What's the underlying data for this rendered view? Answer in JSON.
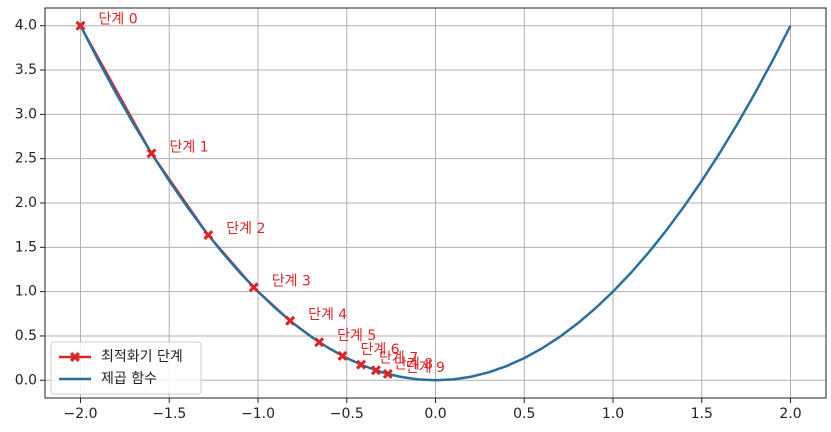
{
  "chart_data": {
    "type": "line",
    "xlim": [
      -2.2,
      2.2
    ],
    "ylim": [
      -0.2,
      4.2
    ],
    "xticks": [
      {
        "value": -2.0,
        "label": "−2.0"
      },
      {
        "value": -1.5,
        "label": "−1.5"
      },
      {
        "value": -1.0,
        "label": "−1.0"
      },
      {
        "value": -0.5,
        "label": "−0.5"
      },
      {
        "value": 0,
        "label": "0.0"
      },
      0.5,
      {
        "value": 1,
        "label": "1.0"
      },
      1.5,
      {
        "value": 2,
        "label": "2.0"
      }
    ],
    "yticks": [
      {
        "value": 0,
        "label": "0.0"
      },
      0.5,
      {
        "value": 1,
        "label": "1.0"
      },
      1.5,
      {
        "value": 2,
        "label": "2.0"
      },
      2.5,
      {
        "value": 3,
        "label": "3.0"
      },
      3.5,
      {
        "value": 4,
        "label": "4.0"
      }
    ],
    "grid": true,
    "legend": "lower left",
    "series": [
      {
        "name": "최적화기 단계",
        "color": "#d62728",
        "marker": "X",
        "x": [
          -2,
          -1.6,
          -1.28,
          -1.024,
          -0.8192,
          -0.65536,
          -0.524288,
          -0.4194304,
          -0.33554432,
          -0.268435456
        ],
        "values": [
          4,
          2.56,
          1.6384,
          1.048576,
          0.67108864,
          0.4294967296,
          0.274877906944,
          0.17592186044416,
          0.1125899906842624,
          0.07205759403792794
        ],
        "annotations": [
          "단계 0",
          "단계 1",
          "단계 2",
          "단계 3",
          "단계 4",
          "단계 5",
          "단계 6",
          "단계 7",
          "단계 8",
          "단계 9"
        ]
      },
      {
        "name": "제곱 함수",
        "color": "#2a6f9b",
        "x": [
          -2,
          -1.9,
          -1.8,
          -1.7,
          -1.6,
          -1.5,
          -1.4,
          -1.3,
          -1.2,
          -1.1,
          -1,
          -0.9,
          -0.8,
          -0.7,
          -0.6,
          -0.5,
          -0.4,
          -0.3,
          -0.2,
          -0.1,
          0,
          0.1,
          0.2,
          0.3,
          0.4,
          0.5,
          0.6,
          0.7,
          0.8,
          0.9,
          1,
          1.1,
          1.2,
          1.3,
          1.4,
          1.5,
          1.6,
          1.7,
          1.8,
          1.9,
          2
        ],
        "values": [
          4,
          3.61,
          3.24,
          2.89,
          2.56,
          2.25,
          1.96,
          1.69,
          1.44,
          1.21,
          1,
          0.81,
          0.64,
          0.49,
          0.36,
          0.25,
          0.16,
          0.09,
          0.04,
          0.01,
          0,
          0.01,
          0.04,
          0.09,
          0.16,
          0.25,
          0.36,
          0.49,
          0.64,
          0.81,
          1,
          1.21,
          1.44,
          1.69,
          1.96,
          2.25,
          2.56,
          2.89,
          3.24,
          3.61,
          4
        ]
      }
    ]
  }
}
